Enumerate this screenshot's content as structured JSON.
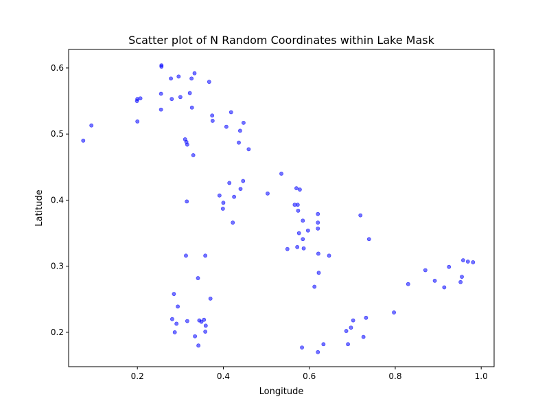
{
  "chart_data": {
    "type": "scatter",
    "title": "Scatter plot of N Random Coordinates within Lake Mask",
    "xlabel": "Longitude",
    "ylabel": "Latitude",
    "xlim": [
      0.04,
      1.03
    ],
    "ylim": [
      0.148,
      0.628
    ],
    "xticks": [
      0.2,
      0.4,
      0.6,
      0.8,
      1.0
    ],
    "xtick_labels": [
      "0.2",
      "0.4",
      "0.6",
      "0.8",
      "1.0"
    ],
    "yticks": [
      0.2,
      0.3,
      0.4,
      0.5,
      0.6
    ],
    "ytick_labels": [
      "0.2",
      "0.3",
      "0.4",
      "0.5",
      "0.6"
    ],
    "grid": false,
    "legend": "none",
    "colors": {
      "marker": "#0000ff",
      "marker_opacity": 0.55,
      "axes": "#000000",
      "background": "#ffffff"
    },
    "points": [
      {
        "x": 0.074,
        "y": 0.49
      },
      {
        "x": 0.093,
        "y": 0.513
      },
      {
        "x": 0.199,
        "y": 0.55
      },
      {
        "x": 0.2,
        "y": 0.553
      },
      {
        "x": 0.207,
        "y": 0.554
      },
      {
        "x": 0.2,
        "y": 0.519
      },
      {
        "x": 0.256,
        "y": 0.604
      },
      {
        "x": 0.256,
        "y": 0.602
      },
      {
        "x": 0.296,
        "y": 0.587
      },
      {
        "x": 0.278,
        "y": 0.584
      },
      {
        "x": 0.326,
        "y": 0.584
      },
      {
        "x": 0.333,
        "y": 0.592
      },
      {
        "x": 0.367,
        "y": 0.579
      },
      {
        "x": 0.255,
        "y": 0.561
      },
      {
        "x": 0.322,
        "y": 0.562
      },
      {
        "x": 0.28,
        "y": 0.553
      },
      {
        "x": 0.3,
        "y": 0.556
      },
      {
        "x": 0.255,
        "y": 0.537
      },
      {
        "x": 0.327,
        "y": 0.54
      },
      {
        "x": 0.374,
        "y": 0.528
      },
      {
        "x": 0.375,
        "y": 0.52
      },
      {
        "x": 0.418,
        "y": 0.533
      },
      {
        "x": 0.447,
        "y": 0.517
      },
      {
        "x": 0.407,
        "y": 0.511
      },
      {
        "x": 0.439,
        "y": 0.505
      },
      {
        "x": 0.311,
        "y": 0.492
      },
      {
        "x": 0.314,
        "y": 0.488
      },
      {
        "x": 0.316,
        "y": 0.484
      },
      {
        "x": 0.436,
        "y": 0.487
      },
      {
        "x": 0.459,
        "y": 0.477
      },
      {
        "x": 0.33,
        "y": 0.468
      },
      {
        "x": 0.535,
        "y": 0.44
      },
      {
        "x": 0.446,
        "y": 0.429
      },
      {
        "x": 0.414,
        "y": 0.426
      },
      {
        "x": 0.57,
        "y": 0.418
      },
      {
        "x": 0.578,
        "y": 0.416
      },
      {
        "x": 0.44,
        "y": 0.417
      },
      {
        "x": 0.503,
        "y": 0.41
      },
      {
        "x": 0.391,
        "y": 0.407
      },
      {
        "x": 0.425,
        "y": 0.405
      },
      {
        "x": 0.315,
        "y": 0.398
      },
      {
        "x": 0.4,
        "y": 0.396
      },
      {
        "x": 0.566,
        "y": 0.393
      },
      {
        "x": 0.573,
        "y": 0.393
      },
      {
        "x": 0.399,
        "y": 0.387
      },
      {
        "x": 0.574,
        "y": 0.384
      },
      {
        "x": 0.62,
        "y": 0.379
      },
      {
        "x": 0.719,
        "y": 0.377
      },
      {
        "x": 0.585,
        "y": 0.369
      },
      {
        "x": 0.422,
        "y": 0.366
      },
      {
        "x": 0.62,
        "y": 0.366
      },
      {
        "x": 0.62,
        "y": 0.357
      },
      {
        "x": 0.597,
        "y": 0.354
      },
      {
        "x": 0.576,
        "y": 0.35
      },
      {
        "x": 0.585,
        "y": 0.341
      },
      {
        "x": 0.739,
        "y": 0.341
      },
      {
        "x": 0.572,
        "y": 0.329
      },
      {
        "x": 0.587,
        "y": 0.327
      },
      {
        "x": 0.549,
        "y": 0.326
      },
      {
        "x": 0.621,
        "y": 0.319
      },
      {
        "x": 0.646,
        "y": 0.316
      },
      {
        "x": 0.313,
        "y": 0.316
      },
      {
        "x": 0.358,
        "y": 0.316
      },
      {
        "x": 0.958,
        "y": 0.309
      },
      {
        "x": 0.969,
        "y": 0.307
      },
      {
        "x": 0.981,
        "y": 0.306
      },
      {
        "x": 0.925,
        "y": 0.299
      },
      {
        "x": 0.87,
        "y": 0.294
      },
      {
        "x": 0.622,
        "y": 0.29
      },
      {
        "x": 0.955,
        "y": 0.284
      },
      {
        "x": 0.341,
        "y": 0.282
      },
      {
        "x": 0.892,
        "y": 0.278
      },
      {
        "x": 0.952,
        "y": 0.276
      },
      {
        "x": 0.83,
        "y": 0.273
      },
      {
        "x": 0.612,
        "y": 0.269
      },
      {
        "x": 0.914,
        "y": 0.268
      },
      {
        "x": 0.285,
        "y": 0.258
      },
      {
        "x": 0.37,
        "y": 0.251
      },
      {
        "x": 0.294,
        "y": 0.239
      },
      {
        "x": 0.797,
        "y": 0.23
      },
      {
        "x": 0.732,
        "y": 0.222
      },
      {
        "x": 0.281,
        "y": 0.22
      },
      {
        "x": 0.355,
        "y": 0.219
      },
      {
        "x": 0.344,
        "y": 0.218
      },
      {
        "x": 0.702,
        "y": 0.218
      },
      {
        "x": 0.349,
        "y": 0.216
      },
      {
        "x": 0.316,
        "y": 0.217
      },
      {
        "x": 0.291,
        "y": 0.213
      },
      {
        "x": 0.359,
        "y": 0.21
      },
      {
        "x": 0.697,
        "y": 0.207
      },
      {
        "x": 0.358,
        "y": 0.201
      },
      {
        "x": 0.287,
        "y": 0.2
      },
      {
        "x": 0.686,
        "y": 0.202
      },
      {
        "x": 0.334,
        "y": 0.194
      },
      {
        "x": 0.726,
        "y": 0.193
      },
      {
        "x": 0.342,
        "y": 0.18
      },
      {
        "x": 0.69,
        "y": 0.182
      },
      {
        "x": 0.633,
        "y": 0.182
      },
      {
        "x": 0.583,
        "y": 0.177
      },
      {
        "x": 0.62,
        "y": 0.17
      }
    ]
  }
}
